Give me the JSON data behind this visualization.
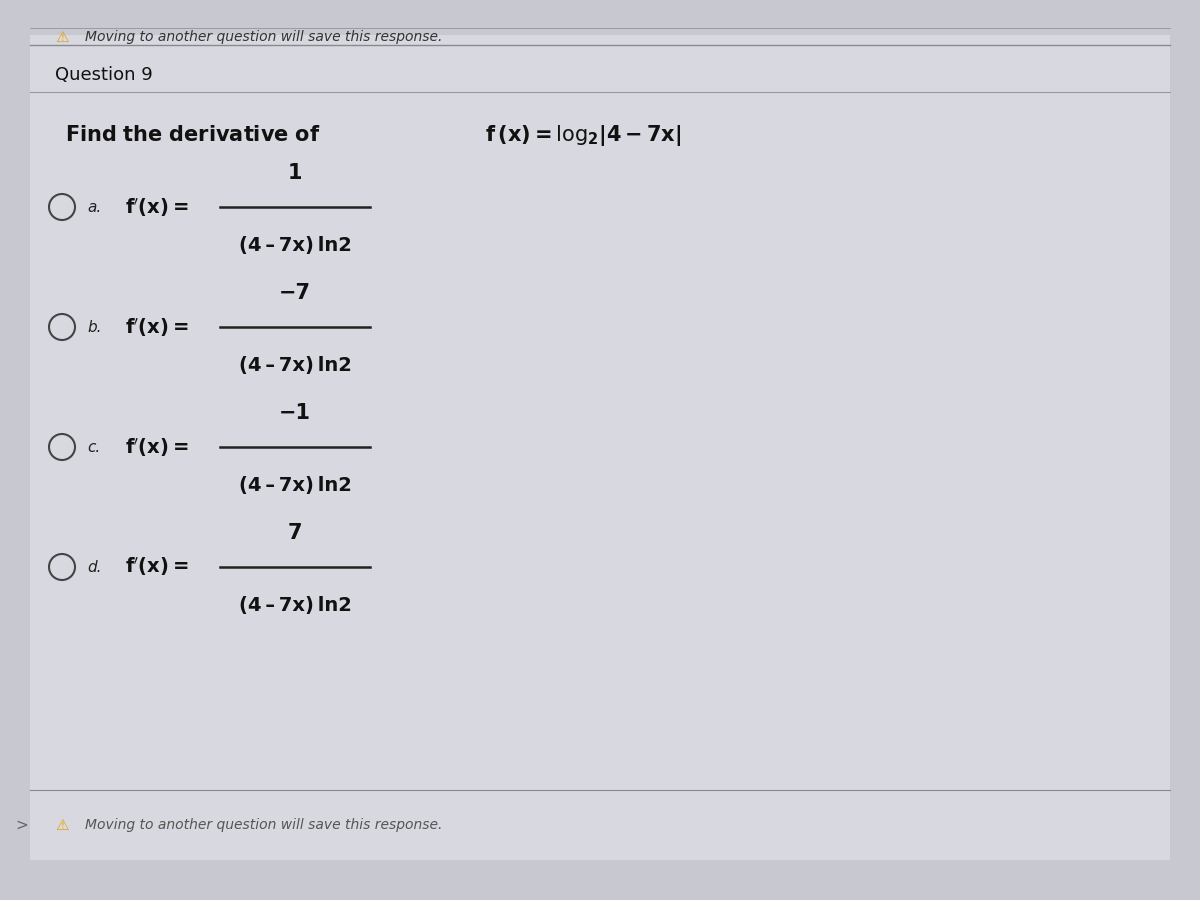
{
  "background_color": "#c8c8d0",
  "panel_color": "#d8d8e0",
  "top_bar_color": "#c0c0c8",
  "top_text": "Moving to another question will save this response.",
  "question_label": "Question 9",
  "question_text": "Find the derivative of  f (x) = log",
  "log_base": "2",
  "log_arg": "|4 – 7x|",
  "options": [
    {
      "label": "a.",
      "numerator": "1",
      "denominator": "(4 – 7x) ln2"
    },
    {
      "label": "b.",
      "numerator": "−7",
      "denominator": "(4 – 7x) ln2"
    },
    {
      "label": "c.",
      "numerator": "−1",
      "denominator": "(4 – 7x) ln2"
    },
    {
      "label": "d.",
      "numerator": "7",
      "denominator": "(4 – 7x) ln2"
    }
  ],
  "bottom_text": "Moving to another question will save this response.",
  "warning_color": "#e8a000",
  "text_color": "#111111",
  "option_label_color": "#222222",
  "fraction_bar_color": "#222222"
}
